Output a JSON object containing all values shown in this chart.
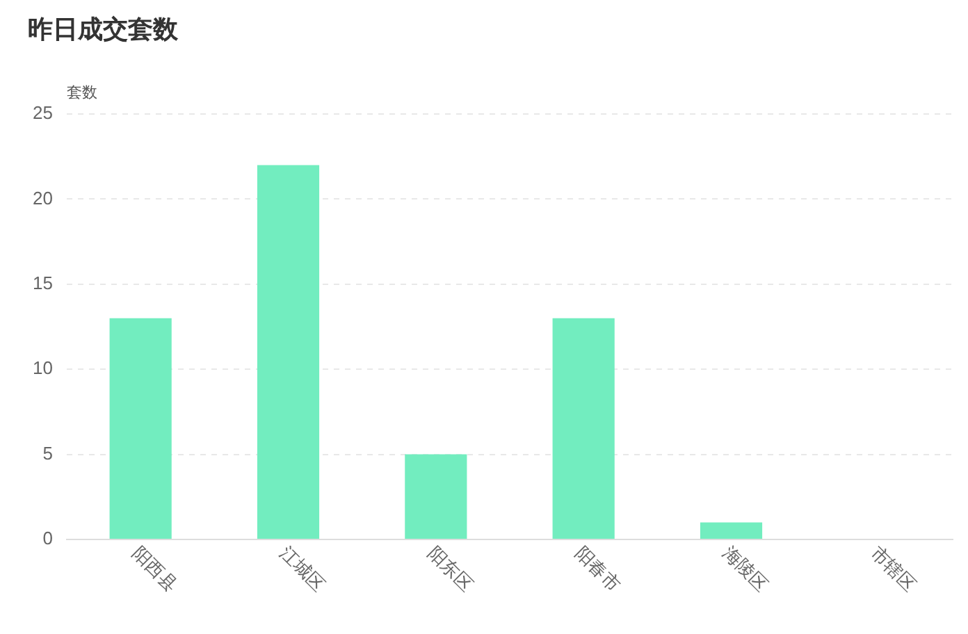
{
  "chart_data": {
    "type": "bar",
    "title": "昨日成交套数",
    "ylabel": "套数",
    "categories": [
      "阳西县",
      "江城区",
      "阳东区",
      "阳春市",
      "海陵区",
      "市辖区"
    ],
    "values": [
      13,
      22,
      5,
      13,
      1,
      0
    ],
    "color": "#72edbf",
    "ylim": [
      0,
      25
    ],
    "yticks": [
      0,
      5,
      10,
      15,
      20,
      25
    ],
    "grid": "y"
  }
}
